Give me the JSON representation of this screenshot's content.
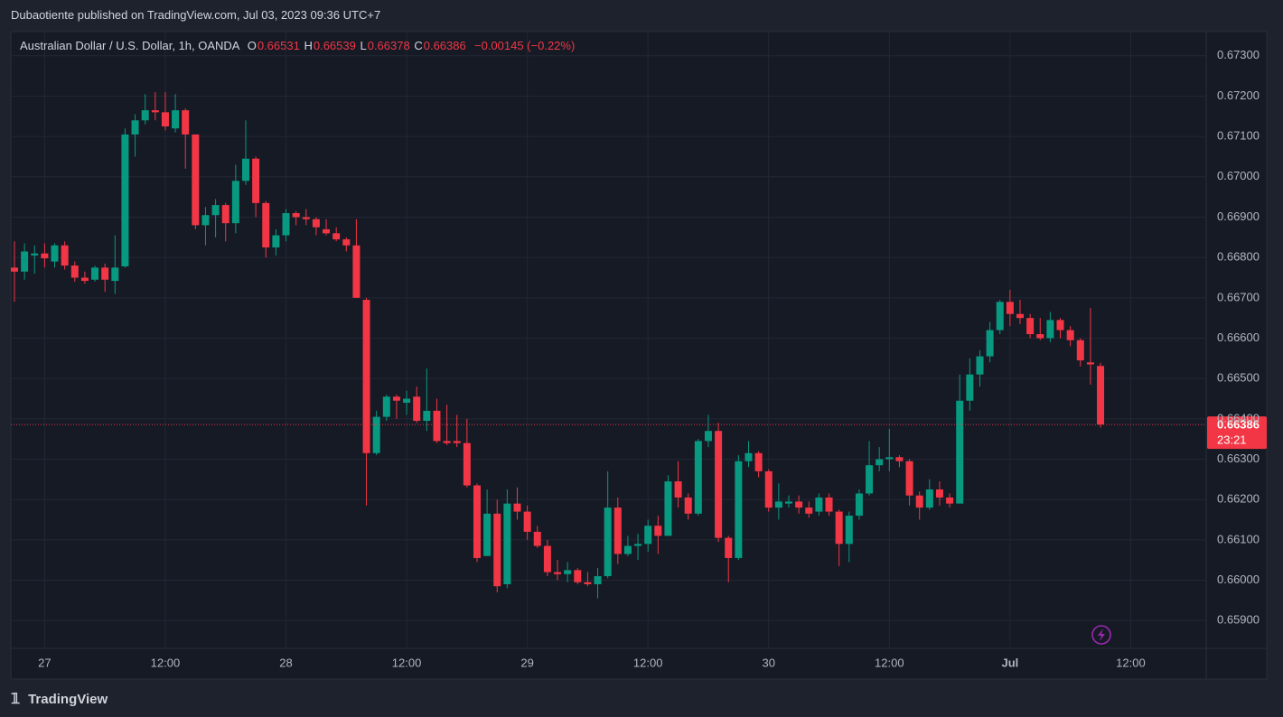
{
  "header": {
    "publisher": "Dubaotiente published on TradingView.com, Jul 03, 2023 09:36 UTC+7"
  },
  "footer": {
    "brand": "TradingView"
  },
  "chart_data": {
    "type": "candlestick",
    "legend": {
      "symbol": "Australian Dollar / U.S. Dollar, 1h, OANDA",
      "items": [
        {
          "label": "O",
          "value": "0.66531"
        },
        {
          "label": "H",
          "value": "0.66539"
        },
        {
          "label": "L",
          "value": "0.66378"
        },
        {
          "label": "C",
          "value": "0.66386"
        }
      ],
      "change": "−0.00145 (−0.22%)"
    },
    "up_color": "#089981",
    "down_color": "#f23645",
    "grid": true,
    "last_price": 0.66386,
    "countdown": "23:21",
    "categories": [
      null,
      null,
      null,
      "27",
      null,
      null,
      null,
      null,
      null,
      null,
      null,
      null,
      null,
      null,
      null,
      "12:00",
      null,
      null,
      null,
      null,
      null,
      null,
      null,
      null,
      null,
      null,
      null,
      "28",
      null,
      null,
      null,
      null,
      null,
      null,
      null,
      null,
      null,
      null,
      null,
      "12:00",
      null,
      null,
      null,
      null,
      null,
      null,
      null,
      null,
      null,
      null,
      null,
      "29",
      null,
      null,
      null,
      null,
      null,
      null,
      null,
      null,
      null,
      null,
      null,
      "12:00",
      null,
      null,
      null,
      null,
      null,
      null,
      null,
      null,
      null,
      null,
      null,
      "30",
      null,
      null,
      null,
      null,
      null,
      null,
      null,
      null,
      null,
      null,
      null,
      "12:00",
      null,
      null,
      null,
      null,
      null,
      null,
      null,
      null,
      null,
      null,
      null,
      "Jul",
      null,
      null,
      null,
      null,
      null,
      null,
      null,
      null,
      null,
      null,
      null,
      "12:00"
    ],
    "open": [
      0.66775,
      0.66765,
      0.66805,
      0.6681,
      0.6679,
      0.6683,
      0.6678,
      0.6675,
      0.66745,
      0.66775,
      0.66742,
      0.66778,
      0.67105,
      0.6714,
      0.67165,
      0.6716,
      0.6712,
      0.67165,
      0.67105,
      0.6688,
      0.66905,
      0.6693,
      0.66885,
      0.6699,
      0.67045,
      0.66935,
      0.66825,
      0.66855,
      0.6691,
      0.669,
      0.66895,
      0.6687,
      0.6686,
      0.66845,
      0.6683,
      0.66695,
      0.66315,
      0.66405,
      0.66455,
      0.6644,
      0.66455,
      0.66395,
      0.6642,
      0.66345,
      0.66345,
      0.6634,
      0.66235,
      0.6606,
      0.66165,
      0.6599,
      0.6619,
      0.6617,
      0.6612,
      0.66085,
      0.6602,
      0.66015,
      0.66025,
      0.65995,
      0.6599,
      0.6601,
      0.6618,
      0.66065,
      0.66085,
      0.6609,
      0.66135,
      0.6611,
      0.66245,
      0.66205,
      0.66165,
      0.66345,
      0.6637,
      0.66105,
      0.66055,
      0.66295,
      0.66315,
      0.6627,
      0.6618,
      0.6619,
      0.66195,
      0.6618,
      0.6617,
      0.66205,
      0.6617,
      0.6609,
      0.6616,
      0.66215,
      0.66285,
      0.663,
      0.66305,
      0.66295,
      0.6621,
      0.6618,
      0.66225,
      0.66205,
      0.6619,
      0.66445,
      0.6651,
      0.66555,
      0.6662,
      0.6669,
      0.6666,
      0.6665,
      0.6661,
      0.666,
      0.66645,
      0.6662,
      0.66595,
      0.6654,
      0.66531,
      null,
      null,
      null
    ],
    "high": [
      0.6684,
      0.66835,
      0.6683,
      0.66835,
      0.66835,
      0.6684,
      0.6679,
      0.66765,
      0.6678,
      0.66785,
      0.66855,
      0.6712,
      0.67155,
      0.67205,
      0.6721,
      0.6721,
      0.67205,
      0.6717,
      0.67105,
      0.66925,
      0.66945,
      0.66935,
      0.6703,
      0.6714,
      0.6705,
      0.6694,
      0.6687,
      0.6692,
      0.66915,
      0.6692,
      0.669,
      0.66895,
      0.66875,
      0.6685,
      0.66895,
      0.667,
      0.6642,
      0.6646,
      0.6646,
      0.6647,
      0.6648,
      0.66525,
      0.6645,
      0.66435,
      0.6641,
      0.664,
      0.6624,
      0.66225,
      0.662,
      0.66225,
      0.6623,
      0.66185,
      0.66135,
      0.661,
      0.6605,
      0.66045,
      0.6603,
      0.6602,
      0.6603,
      0.6627,
      0.66205,
      0.6611,
      0.66115,
      0.6615,
      0.6616,
      0.6626,
      0.66295,
      0.66215,
      0.6635,
      0.6641,
      0.6639,
      0.6611,
      0.6631,
      0.66345,
      0.6632,
      0.66275,
      0.6624,
      0.6621,
      0.6621,
      0.66195,
      0.66215,
      0.66215,
      0.66175,
      0.6617,
      0.66225,
      0.66345,
      0.6633,
      0.66375,
      0.6631,
      0.663,
      0.6622,
      0.6625,
      0.66245,
      0.66215,
      0.6651,
      0.6655,
      0.6657,
      0.6664,
      0.66695,
      0.6672,
      0.66695,
      0.6666,
      0.6665,
      0.66665,
      0.6665,
      0.6663,
      0.666,
      0.66675,
      0.66539,
      null,
      null,
      null
    ],
    "low": [
      0.6669,
      0.66745,
      0.6676,
      0.66775,
      0.66775,
      0.6677,
      0.6674,
      0.66735,
      0.6674,
      0.66715,
      0.6671,
      0.66775,
      0.6705,
      0.6713,
      0.6714,
      0.67115,
      0.6711,
      0.6702,
      0.6687,
      0.6683,
      0.6685,
      0.6684,
      0.6686,
      0.6698,
      0.669,
      0.668,
      0.66805,
      0.6684,
      0.6688,
      0.6688,
      0.66855,
      0.66855,
      0.6684,
      0.66815,
      0.667,
      0.66185,
      0.6631,
      0.66395,
      0.664,
      0.6641,
      0.6639,
      0.6637,
      0.6634,
      0.66335,
      0.6633,
      0.6623,
      0.66045,
      0.6606,
      0.6597,
      0.6598,
      0.6615,
      0.661,
      0.6608,
      0.6601,
      0.66,
      0.65995,
      0.6599,
      0.65985,
      0.65955,
      0.66005,
      0.6604,
      0.6606,
      0.6605,
      0.6607,
      0.66065,
      0.6611,
      0.6618,
      0.6615,
      0.6616,
      0.6633,
      0.66095,
      0.65995,
      0.6605,
      0.6628,
      0.66255,
      0.6617,
      0.6615,
      0.6618,
      0.66165,
      0.66155,
      0.6616,
      0.6616,
      0.66035,
      0.66045,
      0.6615,
      0.6621,
      0.6627,
      0.6627,
      0.6628,
      0.66185,
      0.6615,
      0.66175,
      0.66185,
      0.6618,
      0.6619,
      0.6642,
      0.6648,
      0.6654,
      0.6661,
      0.6663,
      0.66635,
      0.666,
      0.66595,
      0.6659,
      0.666,
      0.6658,
      0.6653,
      0.66485,
      0.66378,
      null,
      null,
      null
    ],
    "close": [
      0.66765,
      0.66815,
      0.6681,
      0.66798,
      0.6683,
      0.6678,
      0.6675,
      0.66742,
      0.66775,
      0.66745,
      0.66775,
      0.67105,
      0.6714,
      0.67165,
      0.6716,
      0.67125,
      0.67165,
      0.67105,
      0.6688,
      0.66905,
      0.6693,
      0.66885,
      0.6699,
      0.67045,
      0.66935,
      0.66825,
      0.66855,
      0.6691,
      0.669,
      0.66895,
      0.66875,
      0.6686,
      0.66845,
      0.6683,
      0.667,
      0.66315,
      0.66405,
      0.66455,
      0.66445,
      0.6645,
      0.66395,
      0.6642,
      0.66345,
      0.6634,
      0.6634,
      0.66235,
      0.66055,
      0.66165,
      0.65985,
      0.6619,
      0.6617,
      0.6612,
      0.66085,
      0.6602,
      0.66015,
      0.66025,
      0.65995,
      0.6599,
      0.6601,
      0.6618,
      0.66065,
      0.66085,
      0.6609,
      0.66135,
      0.6611,
      0.66245,
      0.66205,
      0.66165,
      0.66345,
      0.6637,
      0.66105,
      0.66055,
      0.66295,
      0.66315,
      0.6627,
      0.6618,
      0.66195,
      0.66195,
      0.6618,
      0.66165,
      0.66205,
      0.6617,
      0.6609,
      0.6616,
      0.66215,
      0.66285,
      0.663,
      0.66305,
      0.66295,
      0.6621,
      0.6618,
      0.66225,
      0.66205,
      0.6619,
      0.66445,
      0.6651,
      0.66555,
      0.6662,
      0.6669,
      0.6666,
      0.6665,
      0.6661,
      0.666,
      0.66645,
      0.6662,
      0.66595,
      0.66545,
      0.66535,
      0.66386,
      null,
      null,
      null
    ],
    "ylim": [
      0.65831,
      0.6736
    ],
    "yticks": [
      {
        "value": 0.659,
        "label": "0.65900"
      },
      {
        "value": 0.66,
        "label": "0.66000"
      },
      {
        "value": 0.661,
        "label": "0.66100"
      },
      {
        "value": 0.662,
        "label": "0.66200"
      },
      {
        "value": 0.663,
        "label": "0.66300"
      },
      {
        "value": 0.664,
        "label": "0.66400"
      },
      {
        "value": 0.665,
        "label": "0.66500"
      },
      {
        "value": 0.666,
        "label": "0.66600"
      },
      {
        "value": 0.667,
        "label": "0.66700"
      },
      {
        "value": 0.668,
        "label": "0.66800"
      },
      {
        "value": 0.669,
        "label": "0.66900"
      },
      {
        "value": 0.67,
        "label": "0.67000"
      },
      {
        "value": 0.671,
        "label": "0.67100"
      },
      {
        "value": 0.672,
        "label": "0.67200"
      },
      {
        "value": 0.673,
        "label": "0.67300"
      }
    ]
  }
}
